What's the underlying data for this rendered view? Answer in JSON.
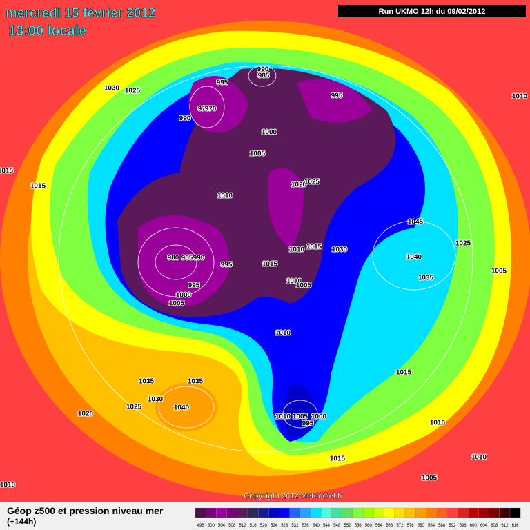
{
  "header": {
    "date": "mercredi 15 février 2012",
    "time": "13:00 locale",
    "run": "Run UKMO 12h du 09/02/2012"
  },
  "copyright": "Copyright 2012 Meteociel.fr",
  "footer": {
    "title": "Géop z500 et pression niveau mer",
    "subtitle": "(+144h)"
  },
  "legend": {
    "levels": [
      496,
      500,
      504,
      508,
      512,
      516,
      520,
      524,
      528,
      532,
      536,
      540,
      544,
      548,
      552,
      556,
      560,
      564,
      568,
      572,
      576,
      580,
      584,
      588,
      592,
      596,
      600,
      604,
      608,
      612,
      616
    ],
    "colors": [
      "#4b0f4b",
      "#7a007a",
      "#9b009b",
      "#780078",
      "#5a1a5a",
      "#2a2a5a",
      "#1a1a8a",
      "#0000c8",
      "#0000ff",
      "#1e64ff",
      "#28a0ff",
      "#00e0ff",
      "#50ffd0",
      "#40e0a0",
      "#60e060",
      "#80ff40",
      "#a0ff00",
      "#d0ff00",
      "#ffff00",
      "#ffe000",
      "#ffc000",
      "#ffa000",
      "#ff8000",
      "#ff6020",
      "#ff4040",
      "#e02020",
      "#c00000",
      "#a00000",
      "#800000",
      "#400000",
      "#000000"
    ]
  },
  "isobar_labels": [
    "1030",
    "1025",
    "995",
    "990",
    "985",
    "995",
    "975",
    "970",
    "990",
    "1000",
    "1005",
    "1015",
    "1015",
    "1010",
    "1020",
    "1025",
    "980",
    "985",
    "990",
    "995",
    "1015",
    "1010",
    "1015",
    "1030",
    "1045",
    "1025",
    "1040",
    "1005",
    "1035",
    "995",
    "1000",
    "1005",
    "1010",
    "1005",
    "1010",
    "1015",
    "1035",
    "1035",
    "1030",
    "1025",
    "1040",
    "1020",
    "1010",
    "1005",
    "1000",
    "995",
    "1010",
    "1015",
    "1010",
    "1005",
    "1010",
    "1010"
  ]
}
